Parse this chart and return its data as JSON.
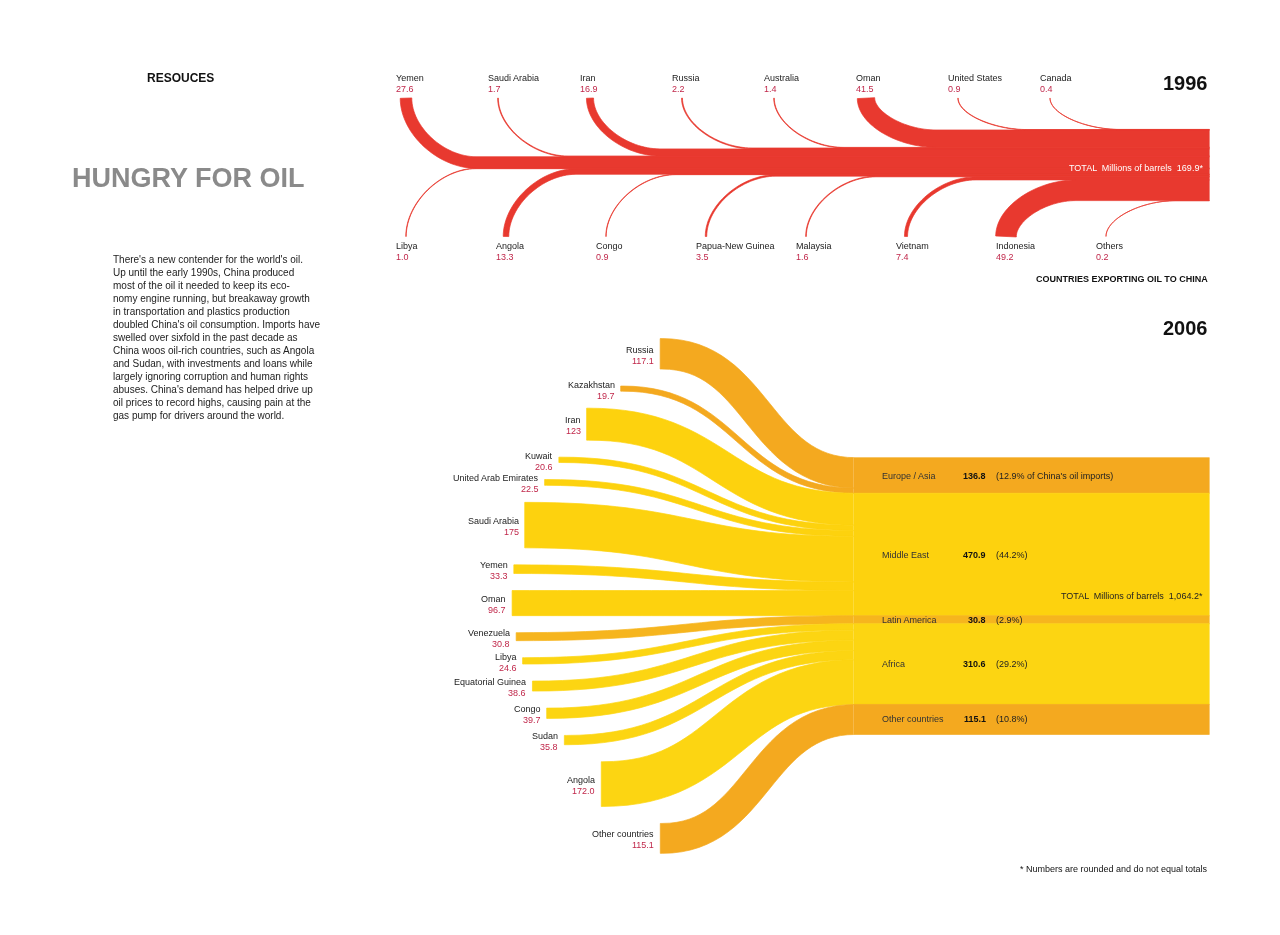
{
  "chart_data": [
    {
      "type": "other",
      "title": "HUNGRY FOR OIL",
      "subtitle": "RESOUCES",
      "annotations": [
        "There's a new contender for the world's oil.\nUp until the early 1990s, China produced\nmost of the oil it needed to keep its eco-\nnomy engine running, but breakaway growth\nin transportation and plastics production\ndoubled China's oil consumption. Imports have\nswelled over sixfold in the past decade as\nChina woos oil-rich countries, such as Angola\nand Sudan, with investments and loans while\nlargely ignoring corruption and human rights\nabuses. China's demand has helped drive up\noil prices to record highs, causing pain at the\ngas pump for drivers around the world."
      ]
    },
    {
      "type": "other",
      "title": "1996",
      "categories": [
        "Yemen",
        "Saudi Arabia",
        "Iran",
        "Russia",
        "Australia",
        "Oman",
        "United States",
        "Canada",
        "Libya",
        "Angola",
        "Congo",
        "Papua-New Guinea",
        "Malaysia",
        "Vietnam",
        "Indonesia",
        "Others"
      ],
      "values": [
        27.6,
        1.7,
        16.9,
        2.2,
        1.4,
        41.5,
        0.9,
        0.4,
        1.0,
        13.3,
        0.9,
        3.5,
        1.6,
        7.4,
        49.2,
        0.2
      ],
      "value_labels": [
        "27.6",
        "1.7",
        "16.9",
        "2.2",
        "1.4",
        "41.5",
        "0.9",
        "0.4",
        "1.0",
        "13.3",
        "0.9",
        "3.5",
        "1.6",
        "7.4",
        "49.2",
        "0.2"
      ],
      "color": "#e8392f",
      "annotations": [
        "TOTAL  Millions of barrels  169.9*",
        "COUNTRIES EXPORTING OIL TO CHINA"
      ]
    },
    {
      "type": "other",
      "title": "2006",
      "categories": [
        "Russia",
        "Kazakhstan",
        "Iran",
        "Kuwait",
        "United Arab Emirates",
        "Saudi Arabia",
        "Yemen",
        "Oman",
        "Venezuela",
        "Libya",
        "Equatorial Guinea",
        "Congo",
        "Sudan",
        "Angola",
        "Other countries"
      ],
      "values": [
        117.1,
        19.7,
        123,
        20.6,
        22.5,
        175,
        33.3,
        96.7,
        30.8,
        24.6,
        38.6,
        39.7,
        35.8,
        172.0,
        115.1
      ],
      "value_labels": [
        "117.1",
        "19.7",
        "123",
        "20.6",
        "22.5",
        "175",
        "33.3",
        "96.7",
        "30.8",
        "24.6",
        "38.6",
        "39.7",
        "35.8",
        "172.0",
        "115.1"
      ],
      "colors": [
        "#f4a91f",
        "#f4a91f",
        "#fdd20e",
        "#fdd20e",
        "#fdd20e",
        "#fdd20e",
        "#fdd20e",
        "#fdd20e",
        "#f6b51e",
        "#fcd512",
        "#fcd512",
        "#fcd512",
        "#fcd512",
        "#fcd512",
        "#f4a91f"
      ]
    },
    {
      "type": "other",
      "categories": [
        "Europe / Asia",
        "Middle East",
        "Latin America",
        "Africa",
        "Other countries"
      ],
      "values": [
        136.8,
        470.9,
        30.8,
        310.6,
        115.1
      ],
      "value_labels": [
        "136.8",
        "470.9",
        "30.8",
        "310.6",
        "115.1"
      ],
      "colors": [
        "#f4a91f",
        "#fdd20e",
        "#f6b51e",
        "#fcd512",
        "#f4a91f"
      ],
      "annotations": [
        "(12.9% of China's oil imports)",
        "(44.2%)",
        "(2.9%)",
        "(29.2%)",
        "(10.8%)",
        "TOTAL  Millions of barrels  1,064.2*",
        "* Numbers are rounded and do not equal totals"
      ]
    }
  ]
}
